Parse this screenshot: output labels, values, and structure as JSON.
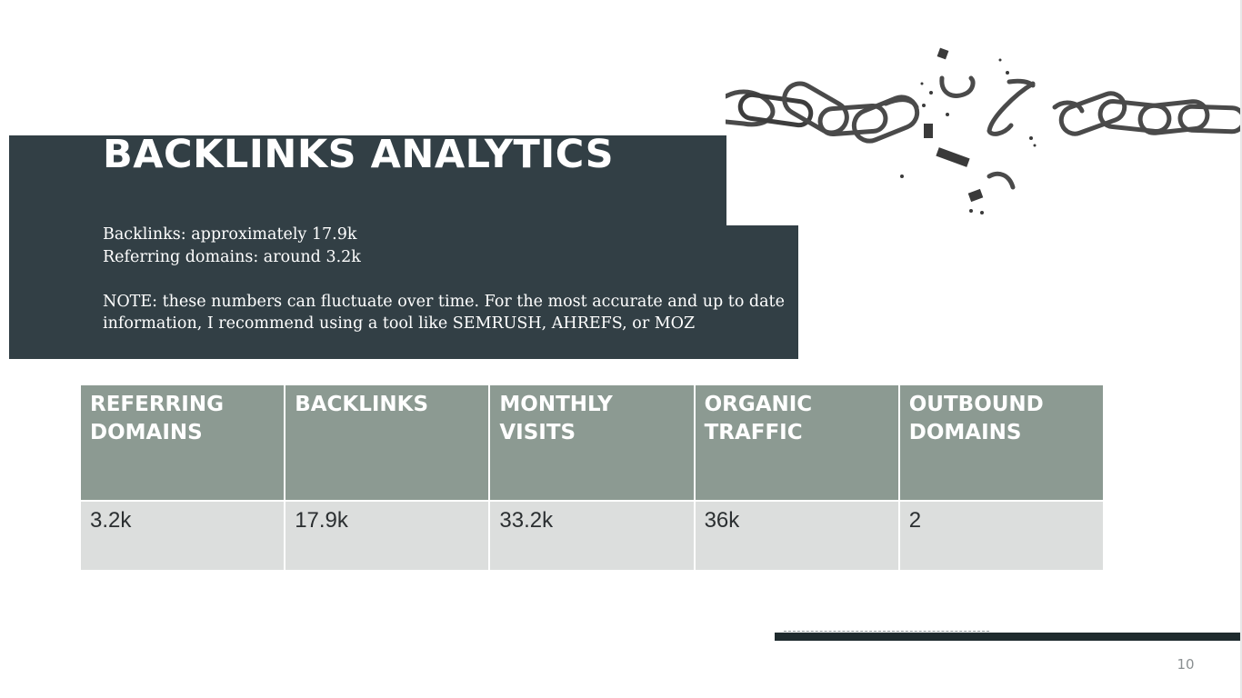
{
  "slide": {
    "title": "BACKLINKS ANALYTICS",
    "lines": [
      "Backlinks: approximately 17.9k",
      "Referring domains: around 3.2k"
    ],
    "note": "NOTE: these numbers can fluctuate over time. For the most accurate and up to date information, I recommend using a tool like SEMRUSH, AHREFS, or MOZ",
    "image": "broken-chain-illustration",
    "page_number": "10"
  },
  "table": {
    "headers": [
      "REFERRING DOMAINS",
      "BACKLINKS",
      "MONTHLY VISITS",
      "ORGANIC TRAFFIC",
      "OUTBOUND DOMAINS"
    ],
    "values": [
      "3.2k",
      "17.9k",
      "33.2k",
      "36k",
      "2"
    ]
  },
  "colors": {
    "panel": "#323f45",
    "table_header": "#8c9a92",
    "table_cell": "#dcdedd",
    "footer_bar": "#1f2b2e"
  }
}
